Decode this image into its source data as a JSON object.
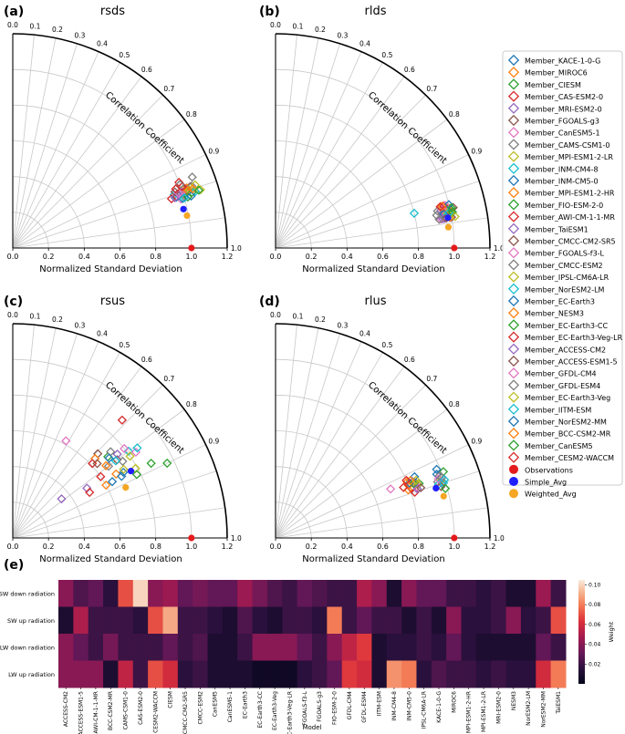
{
  "colors": {
    "observations": "#e41a1c",
    "simple_avg": "#1f1fff",
    "weighted_avg": "#f5a623"
  },
  "legend": {
    "members": [
      {
        "name": "Member_KACE-1-0-G",
        "color": "#1f77b4"
      },
      {
        "name": "Member_MIROC6",
        "color": "#ff7f0e"
      },
      {
        "name": "Member_CIESM",
        "color": "#2ca02c"
      },
      {
        "name": "Member_CAS-ESM2-0",
        "color": "#d62728"
      },
      {
        "name": "Member_MRI-ESM2-0",
        "color": "#9467bd"
      },
      {
        "name": "Member_FGOALS-g3",
        "color": "#8c564b"
      },
      {
        "name": "Member_CanESM5-1",
        "color": "#e377c2"
      },
      {
        "name": "Member_CAMS-CSM1-0",
        "color": "#7f7f7f"
      },
      {
        "name": "Member_MPI-ESM1-2-LR",
        "color": "#bcbd22"
      },
      {
        "name": "Member_INM-CM4-8",
        "color": "#17becf"
      },
      {
        "name": "Member_INM-CM5-0",
        "color": "#1f77b4"
      },
      {
        "name": "Member_MPI-ESM1-2-HR",
        "color": "#ff7f0e"
      },
      {
        "name": "Member_FIO-ESM-2-0",
        "color": "#2ca02c"
      },
      {
        "name": "Member_AWI-CM-1-1-MR",
        "color": "#d62728"
      },
      {
        "name": "Member_TaiESM1",
        "color": "#9467bd"
      },
      {
        "name": "Member_CMCC-CM2-SR5",
        "color": "#8c564b"
      },
      {
        "name": "Member_FGOALS-f3-L",
        "color": "#e377c2"
      },
      {
        "name": "Member_CMCC-ESM2",
        "color": "#7f7f7f"
      },
      {
        "name": "Member_IPSL-CM6A-LR",
        "color": "#bcbd22"
      },
      {
        "name": "Member_NorESM2-LM",
        "color": "#17becf"
      },
      {
        "name": "Member_EC-Earth3",
        "color": "#1f77b4"
      },
      {
        "name": "Member_NESM3",
        "color": "#ff7f0e"
      },
      {
        "name": "Member_EC-Earth3-CC",
        "color": "#2ca02c"
      },
      {
        "name": "Member_EC-Earth3-Veg-LR",
        "color": "#d62728"
      },
      {
        "name": "Member_ACCESS-CM2",
        "color": "#9467bd"
      },
      {
        "name": "Member_ACCESS-ESM1-5",
        "color": "#8c564b"
      },
      {
        "name": "Member_GFDL-CM4",
        "color": "#e377c2"
      },
      {
        "name": "Member_GFDL-ESM4",
        "color": "#7f7f7f"
      },
      {
        "name": "Member_EC-Earth3-Veg",
        "color": "#bcbd22"
      },
      {
        "name": "Member_IITM-ESM",
        "color": "#17becf"
      },
      {
        "name": "Member_NorESM2-MM",
        "color": "#1f77b4"
      },
      {
        "name": "Member_BCC-CSM2-MR",
        "color": "#ff7f0e"
      },
      {
        "name": "Member_CanESM5",
        "color": "#2ca02c"
      },
      {
        "name": "Member_CESM2-WACCM",
        "color": "#d62728"
      }
    ],
    "observations": "Observations",
    "simple_avg": "Simple_Avg",
    "weighted_avg": "Weighted_Avg"
  },
  "chart_data": [
    {
      "type": "scatter",
      "subtype": "taylor-diagram",
      "panel_label": "(a)",
      "title": "rsds",
      "xlabel": "Normalized Standard Deviation",
      "arc_label": "Correlation Coefficient",
      "std_ticks": [
        "0.0",
        "0.2",
        "0.4",
        "0.6",
        "0.8",
        "1.0",
        "1.2"
      ],
      "corr_ticks": [
        "0.0",
        "0.1",
        "0.2",
        "0.3",
        "0.4",
        "0.5",
        "0.6",
        "0.7",
        "0.8",
        "0.9",
        "1.0"
      ],
      "std_max": 1.2,
      "observations": {
        "std": 1.0,
        "corr": 1.0
      },
      "simple_avg": {
        "std": 0.98,
        "corr": 0.975
      },
      "weighted_avg": {
        "std": 1.0,
        "corr": 0.975
      },
      "members": [
        {
          "std": 1.0,
          "corr": 0.95
        },
        {
          "std": 1.02,
          "corr": 0.95
        },
        {
          "std": 1.0,
          "corr": 0.955
        },
        {
          "std": 1.0,
          "corr": 0.93
        },
        {
          "std": 0.97,
          "corr": 0.95
        },
        {
          "std": 1.05,
          "corr": 0.945
        },
        {
          "std": 0.98,
          "corr": 0.96
        },
        {
          "std": 1.08,
          "corr": 0.93
        },
        {
          "std": 1.1,
          "corr": 0.955
        },
        {
          "std": 0.95,
          "corr": 0.95
        },
        {
          "std": 0.96,
          "corr": 0.955
        },
        {
          "std": 1.03,
          "corr": 0.945
        },
        {
          "std": 1.05,
          "corr": 0.955
        },
        {
          "std": 0.93,
          "corr": 0.955
        },
        {
          "std": 1.0,
          "corr": 0.95
        },
        {
          "std": 1.01,
          "corr": 0.945
        },
        {
          "std": 0.99,
          "corr": 0.95
        },
        {
          "std": 1.06,
          "corr": 0.945
        },
        {
          "std": 1.04,
          "corr": 0.95
        },
        {
          "std": 1.07,
          "corr": 0.955
        },
        {
          "std": 0.99,
          "corr": 0.96
        },
        {
          "std": 1.03,
          "corr": 0.95
        },
        {
          "std": 1.02,
          "corr": 0.96
        },
        {
          "std": 1.01,
          "corr": 0.94
        },
        {
          "std": 0.95,
          "corr": 0.955
        },
        {
          "std": 0.96,
          "corr": 0.945
        },
        {
          "std": 0.98,
          "corr": 0.95
        },
        {
          "std": 1.0,
          "corr": 0.935
        },
        {
          "std": 1.08,
          "corr": 0.945
        },
        {
          "std": 1.0,
          "corr": 0.96
        },
        {
          "std": 1.04,
          "corr": 0.96
        },
        {
          "std": 1.06,
          "corr": 0.95
        },
        {
          "std": 1.09,
          "corr": 0.955
        },
        {
          "std": 0.97,
          "corr": 0.94
        }
      ]
    },
    {
      "type": "scatter",
      "subtype": "taylor-diagram",
      "panel_label": "(b)",
      "title": "rlds",
      "xlabel": "Normalized Standard Deviation",
      "arc_label": "Correlation Coefficient",
      "std_ticks": [
        "0.0",
        "0.2",
        "0.4",
        "0.6",
        "0.8",
        "1.0",
        "1.2"
      ],
      "corr_ticks": [
        "0.0",
        "0.1",
        "0.2",
        "0.3",
        "0.4",
        "0.5",
        "0.6",
        "0.7",
        "0.8",
        "0.9",
        "1.0"
      ],
      "std_max": 1.2,
      "observations": {
        "std": 1.0,
        "corr": 1.0
      },
      "simple_avg": {
        "std": 0.98,
        "corr": 0.985
      },
      "weighted_avg": {
        "std": 0.98,
        "corr": 0.987
      },
      "members": [
        {
          "std": 1.0,
          "corr": 0.98
        },
        {
          "std": 0.97,
          "corr": 0.98
        },
        {
          "std": 1.0,
          "corr": 0.975
        },
        {
          "std": 0.98,
          "corr": 0.975
        },
        {
          "std": 0.96,
          "corr": 0.985
        },
        {
          "std": 1.0,
          "corr": 0.985
        },
        {
          "std": 0.95,
          "corr": 0.98
        },
        {
          "std": 0.93,
          "corr": 0.975
        },
        {
          "std": 0.98,
          "corr": 0.98
        },
        {
          "std": 0.8,
          "corr": 0.97
        },
        {
          "std": 1.01,
          "corr": 0.98
        },
        {
          "std": 0.99,
          "corr": 0.985
        },
        {
          "std": 1.0,
          "corr": 0.98
        },
        {
          "std": 0.97,
          "corr": 0.98
        },
        {
          "std": 0.95,
          "corr": 0.975
        },
        {
          "std": 1.02,
          "corr": 0.975
        },
        {
          "std": 0.94,
          "corr": 0.985
        },
        {
          "std": 0.92,
          "corr": 0.98
        },
        {
          "std": 1.0,
          "corr": 0.978
        },
        {
          "std": 0.98,
          "corr": 0.982
        },
        {
          "std": 0.96,
          "corr": 0.98
        },
        {
          "std": 0.99,
          "corr": 0.975
        },
        {
          "std": 1.01,
          "corr": 0.98
        },
        {
          "std": 0.97,
          "corr": 0.97
        },
        {
          "std": 0.95,
          "corr": 0.985
        },
        {
          "std": 0.97,
          "corr": 0.985
        },
        {
          "std": 0.98,
          "corr": 0.97
        },
        {
          "std": 0.93,
          "corr": 0.985
        },
        {
          "std": 1.02,
          "corr": 0.985
        },
        {
          "std": 0.99,
          "corr": 0.98
        },
        {
          "std": 1.0,
          "corr": 0.97
        },
        {
          "std": 0.96,
          "corr": 0.97
        },
        {
          "std": 1.01,
          "corr": 0.975
        },
        {
          "std": 0.95,
          "corr": 0.97
        }
      ]
    },
    {
      "type": "scatter",
      "subtype": "taylor-diagram",
      "panel_label": "(c)",
      "title": "rsus",
      "xlabel": "Normalized Standard Deviation",
      "arc_label": "Correlation Coefficient",
      "std_ticks": [
        "0.0",
        "0.2",
        "0.4",
        "0.6",
        "0.8",
        "1.0",
        "1.2"
      ],
      "corr_ticks": [
        "0.0",
        "0.1",
        "0.2",
        "0.3",
        "0.4",
        "0.5",
        "0.6",
        "0.7",
        "0.8",
        "0.9",
        "1.0"
      ],
      "std_max": 1.2,
      "observations": {
        "std": 1.0,
        "corr": 1.0
      },
      "simple_avg": {
        "std": 0.76,
        "corr": 0.87
      },
      "weighted_avg": {
        "std": 0.71,
        "corr": 0.89
      },
      "members": [
        {
          "std": 0.72,
          "corr": 0.86
        },
        {
          "std": 0.68,
          "corr": 0.85
        },
        {
          "std": 0.88,
          "corr": 0.88
        },
        {
          "std": 0.6,
          "corr": 0.82
        },
        {
          "std": 0.5,
          "corr": 0.83
        },
        {
          "std": 0.73,
          "corr": 0.8
        },
        {
          "std": 0.62,
          "corr": 0.48
        },
        {
          "std": 0.67,
          "corr": 0.8
        },
        {
          "std": 0.79,
          "corr": 0.87
        },
        {
          "std": 0.81,
          "corr": 0.8
        },
        {
          "std": 0.64,
          "corr": 0.87
        },
        {
          "std": 0.6,
          "corr": 0.87
        },
        {
          "std": 0.78,
          "corr": 0.89
        },
        {
          "std": 0.9,
          "corr": 0.68
        },
        {
          "std": 0.75,
          "corr": 0.78
        },
        {
          "std": 0.67,
          "corr": 0.71
        },
        {
          "std": 0.84,
          "corr": 0.82
        },
        {
          "std": 0.75,
          "corr": 0.82
        },
        {
          "std": 0.8,
          "corr": 0.82
        },
        {
          "std": 0.86,
          "corr": 0.81
        },
        {
          "std": 0.7,
          "corr": 0.87
        },
        {
          "std": 0.64,
          "corr": 0.72
        },
        {
          "std": 0.7,
          "corr": 0.76
        },
        {
          "std": 0.61,
          "corr": 0.73
        },
        {
          "std": 0.35,
          "corr": 0.78
        },
        {
          "std": 0.63,
          "corr": 0.75
        },
        {
          "std": 0.8,
          "corr": 0.78
        },
        {
          "std": 0.73,
          "corr": 0.75
        },
        {
          "std": 0.73,
          "corr": 0.85
        },
        {
          "std": 0.72,
          "corr": 0.8
        },
        {
          "std": 0.7,
          "corr": 0.77
        },
        {
          "std": 0.66,
          "corr": 0.79
        },
        {
          "std": 0.96,
          "corr": 0.9
        },
        {
          "std": 0.5,
          "corr": 0.86
        }
      ]
    },
    {
      "type": "scatter",
      "subtype": "taylor-diagram",
      "panel_label": "(d)",
      "title": "rlus",
      "xlabel": "Normalized Standard Deviation",
      "arc_label": "Correlation Coefficient",
      "std_ticks": [
        "0.0",
        "0.2",
        "0.4",
        "0.6",
        "0.8",
        "1.0",
        "1.2"
      ],
      "corr_ticks": [
        "0.0",
        "0.1",
        "0.2",
        "0.3",
        "0.4",
        "0.5",
        "0.6",
        "0.7",
        "0.8",
        "0.9",
        "1.0"
      ],
      "std_max": 1.2,
      "observations": {
        "std": 1.0,
        "corr": 1.0
      },
      "simple_avg": {
        "std": 0.94,
        "corr": 0.955
      },
      "weighted_avg": {
        "std": 0.98,
        "corr": 0.96
      },
      "members": [
        {
          "std": 0.97,
          "corr": 0.93
        },
        {
          "std": 0.8,
          "corr": 0.92
        },
        {
          "std": 1.01,
          "corr": 0.93
        },
        {
          "std": 0.81,
          "corr": 0.94
        },
        {
          "std": 0.98,
          "corr": 0.95
        },
        {
          "std": 0.84,
          "corr": 0.93
        },
        {
          "std": 0.7,
          "corr": 0.92
        },
        {
          "std": 0.96,
          "corr": 0.945
        },
        {
          "std": 0.98,
          "corr": 0.945
        },
        {
          "std": 0.96,
          "corr": 0.95
        },
        {
          "std": 0.85,
          "corr": 0.915
        },
        {
          "std": 0.79,
          "corr": 0.94
        },
        {
          "std": 0.86,
          "corr": 0.935
        },
        {
          "std": 0.82,
          "corr": 0.95
        },
        {
          "std": 0.83,
          "corr": 0.925
        },
        {
          "std": 0.97,
          "corr": 0.955
        },
        {
          "std": 0.84,
          "corr": 0.94
        },
        {
          "std": 0.98,
          "corr": 0.935
        },
        {
          "std": 0.85,
          "corr": 0.935
        },
        {
          "std": 0.99,
          "corr": 0.95
        },
        {
          "std": 0.81,
          "corr": 0.925
        },
        {
          "std": 0.8,
          "corr": 0.93
        },
        {
          "std": 0.83,
          "corr": 0.93
        },
        {
          "std": 0.77,
          "corr": 0.93
        },
        {
          "std": 0.84,
          "corr": 0.945
        },
        {
          "std": 0.86,
          "corr": 0.945
        },
        {
          "std": 0.97,
          "corr": 0.94
        },
        {
          "std": 0.99,
          "corr": 0.94
        },
        {
          "std": 0.85,
          "corr": 0.925
        },
        {
          "std": 1.0,
          "corr": 0.945
        },
        {
          "std": 0.98,
          "corr": 0.92
        },
        {
          "std": 0.82,
          "corr": 0.92
        },
        {
          "std": 0.99,
          "corr": 0.96
        },
        {
          "std": 0.8,
          "corr": 0.915
        }
      ]
    },
    {
      "type": "heatmap",
      "panel_label": "(e)",
      "xlabel": "Model",
      "colorbar_label": "Weight",
      "colorbar_ticks": [
        0.02,
        0.04,
        0.06,
        0.08,
        0.1
      ],
      "vmin": 0.0,
      "vmax": 0.105,
      "rows": [
        "SW down radiation",
        "SW up radiation",
        "LW down radiation",
        "LW up radiation"
      ],
      "columns": [
        "ACCESS-CM2",
        "ACCESS-ESM1-5",
        "AWI-CM-1-1-MR",
        "BCC-CSM2-MR",
        "CAMS-CSM1-0",
        "CAS-ESM2-0",
        "CESM2-WACCM",
        "CIESM",
        "CMCC-CM2-SR5",
        "CMCC-ESM2",
        "CanESM5",
        "CanESM5-1",
        "EC-Earth3",
        "EC-Earth3-CC",
        "EC-Earth3-Veg",
        "EC-Earth3-Veg-LR",
        "FGOALS-f3-L",
        "FGOALS-g3",
        "FIO-ESM-2-0",
        "GFDL-CM4",
        "GFDL-ESM4",
        "IITM-ESM",
        "INM-CM4-8",
        "INM-CM5-0",
        "IPSL-CM6A-LR",
        "KACE-1-0-G",
        "MIROC6",
        "MPI-ESM1-2-HR",
        "MPI-ESM1-2-LR",
        "MRI-ESM2-0",
        "NESM3",
        "NorESM2-LM",
        "NorESM2-MM",
        "TaiESM1"
      ],
      "values": [
        [
          0.04,
          0.025,
          0.03,
          0.015,
          0.07,
          0.1,
          0.04,
          0.045,
          0.03,
          0.035,
          0.03,
          0.03,
          0.045,
          0.035,
          0.025,
          0.02,
          0.03,
          0.025,
          0.02,
          0.02,
          0.05,
          0.04,
          0.01,
          0.04,
          0.03,
          0.03,
          0.02,
          0.02,
          0.015,
          0.02,
          0.01,
          0.01,
          0.045,
          0.02
        ],
        [
          0.01,
          0.05,
          0.02,
          0.02,
          0.02,
          0.015,
          0.07,
          0.09,
          0.02,
          0.02,
          0.015,
          0.01,
          0.025,
          0.015,
          0.01,
          0.02,
          0.02,
          0.015,
          0.08,
          0.02,
          0.03,
          0.02,
          0.02,
          0.01,
          0.02,
          0.01,
          0.04,
          0.015,
          0.015,
          0.02,
          0.04,
          0.015,
          0.02,
          0.07
        ],
        [
          0.04,
          0.03,
          0.02,
          0.035,
          0.02,
          0.02,
          0.02,
          0.03,
          0.02,
          0.025,
          0.01,
          0.01,
          0.02,
          0.04,
          0.04,
          0.04,
          0.03,
          0.02,
          0.04,
          0.055,
          0.065,
          0.01,
          0.015,
          0.015,
          0.02,
          0.015,
          0.03,
          0.015,
          0.01,
          0.01,
          0.01,
          0.01,
          0.03,
          0.02
        ],
        [
          0.04,
          0.04,
          0.04,
          0.01,
          0.055,
          0.02,
          0.07,
          0.06,
          0.015,
          0.02,
          0.01,
          0.01,
          0.01,
          0.005,
          0.005,
          0.005,
          0.015,
          0.02,
          0.03,
          0.065,
          0.06,
          0.01,
          0.085,
          0.08,
          0.015,
          0.025,
          0.02,
          0.02,
          0.015,
          0.02,
          0.015,
          0.015,
          0.06,
          0.08
        ]
      ]
    }
  ]
}
